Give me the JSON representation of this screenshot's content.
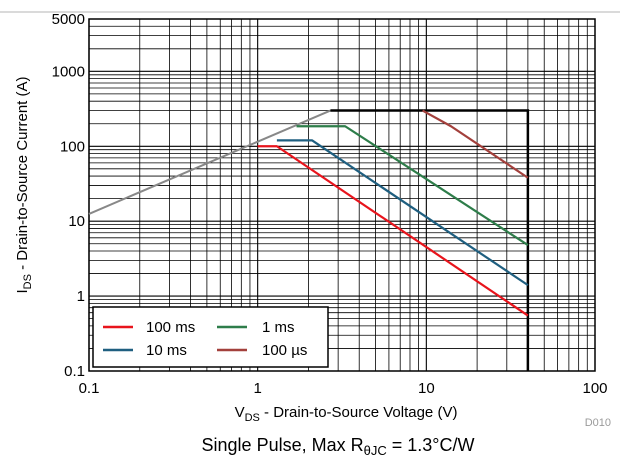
{
  "chart_data": {
    "type": "line",
    "x_scale": "log",
    "y_scale": "log",
    "xlim": [
      0.1,
      100
    ],
    "ylim": [
      0.1,
      5000
    ],
    "x_ticks": [
      {
        "value": 0.1,
        "label": "0.1"
      },
      {
        "value": 1,
        "label": "1"
      },
      {
        "value": 10,
        "label": "10"
      },
      {
        "value": 100,
        "label": "100"
      }
    ],
    "y_ticks": [
      {
        "value": 0.1,
        "label": "0.1"
      },
      {
        "value": 1,
        "label": "1"
      },
      {
        "value": 10,
        "label": "10"
      },
      {
        "value": 100,
        "label": "100"
      },
      {
        "value": 1000,
        "label": "1000"
      },
      {
        "value": 5000,
        "label": "5000"
      }
    ],
    "xlabel": {
      "main": "V",
      "sub": "DS",
      "rest": " - Drain-to-Source Voltage (V)"
    },
    "ylabel": {
      "main": "I",
      "sub": "DS",
      "rest": " - Drain-to-Source Current (A)"
    },
    "grid": true,
    "legend_position": "bottom-left",
    "series": [
      {
        "name": "100 ms",
        "color": "#e8141c",
        "points": [
          [
            1,
            100
          ],
          [
            1.3,
            100
          ],
          [
            40,
            0.55
          ]
        ]
      },
      {
        "name": "10 ms",
        "color": "#1f5f80",
        "points": [
          [
            1.3,
            120
          ],
          [
            2.1,
            120
          ],
          [
            40,
            1.4
          ]
        ]
      },
      {
        "name": "1 ms",
        "color": "#2e7d4a",
        "points": [
          [
            1.7,
            185
          ],
          [
            3.3,
            185
          ],
          [
            40,
            4.8
          ]
        ]
      },
      {
        "name": "100 µs",
        "color": "#a3403c",
        "points": [
          [
            9.5,
            300
          ],
          [
            14,
            185
          ],
          [
            40,
            38
          ]
        ]
      }
    ],
    "limits": [
      {
        "kind": "rds-on",
        "color": "#888888",
        "points": [
          [
            0.1,
            12.5
          ],
          [
            2.7,
            300
          ]
        ]
      },
      {
        "kind": "boundary",
        "color": "#000000",
        "points": [
          [
            2.7,
            300
          ],
          [
            40,
            300
          ],
          [
            40,
            0.1
          ]
        ]
      }
    ]
  },
  "figure": {
    "tag": "D010",
    "caption": {
      "main": "Single Pulse, Max R",
      "sub": "θJC",
      "rest": " = 1.3°C/W"
    }
  }
}
